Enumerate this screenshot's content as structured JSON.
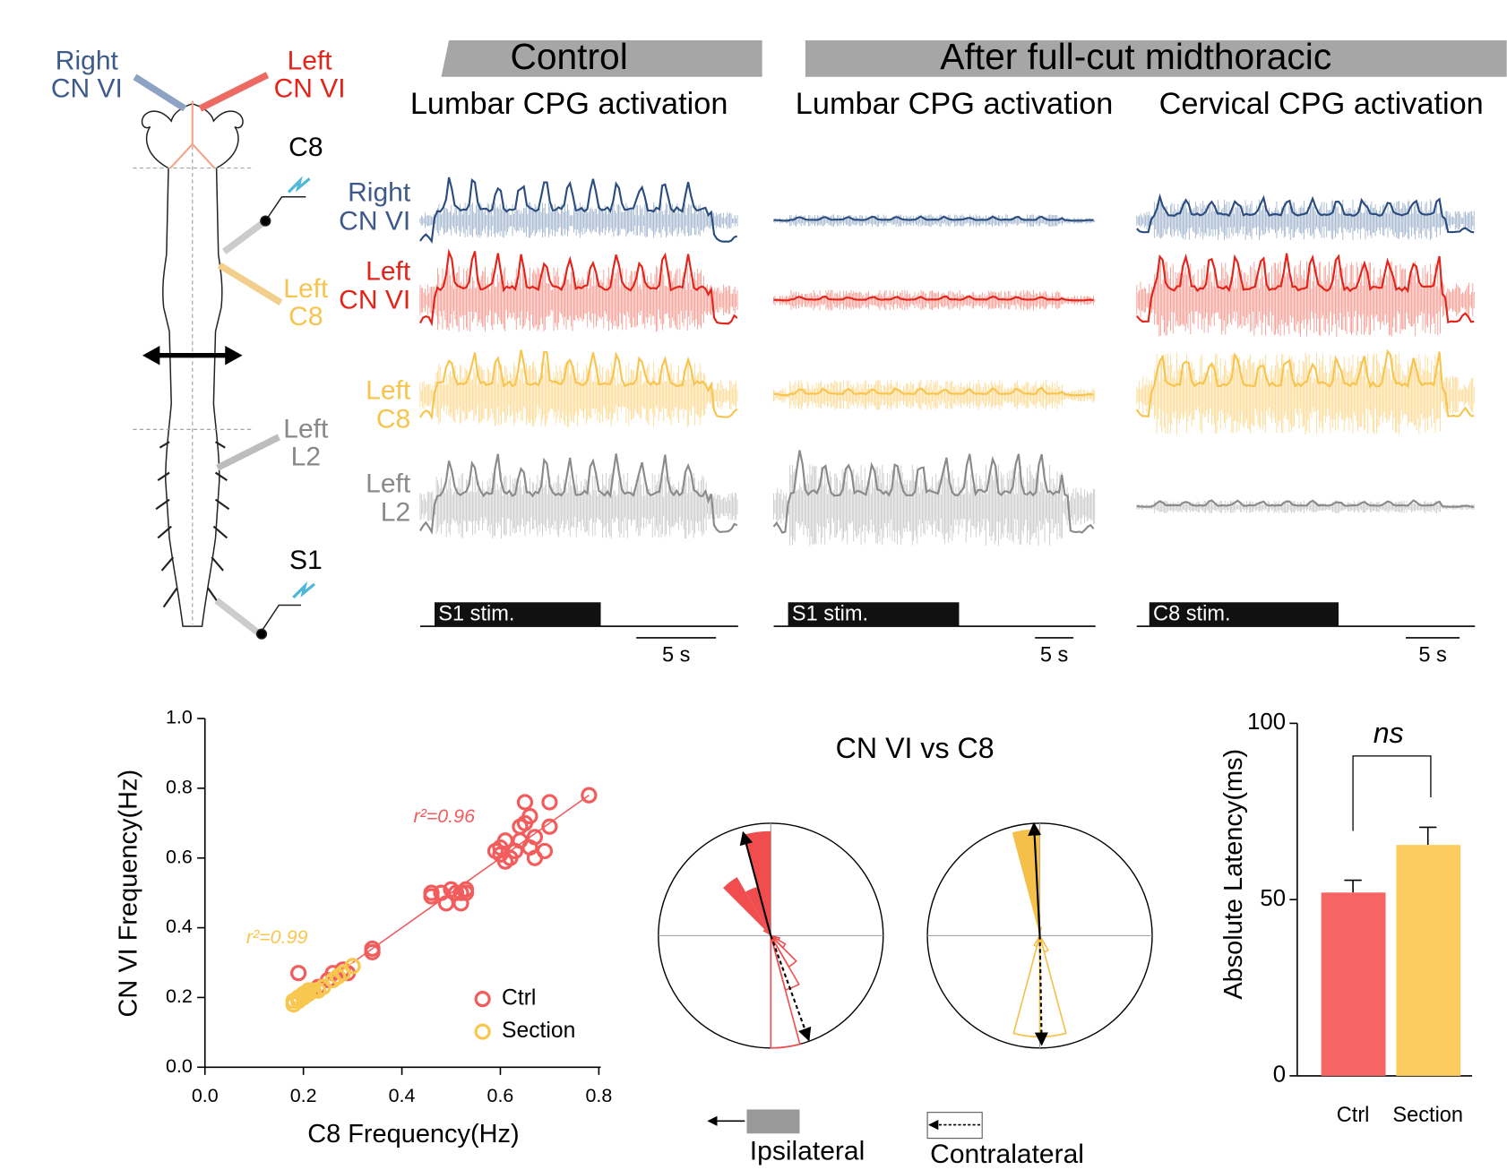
{
  "headers": {
    "control": "Control",
    "after": "After full-cut midthoracic"
  },
  "panels": [
    {
      "title": "Lumbar CPG activation",
      "stim": "S1 stim.",
      "scale": "5 s"
    },
    {
      "title": "Lumbar CPG activation",
      "stim": "S1 stim.",
      "scale": "5 s"
    },
    {
      "title": "Cervical CPG activation",
      "stim": "C8 stim.",
      "scale": "5 s"
    }
  ],
  "trace_labels": [
    [
      "Right",
      "CN VI"
    ],
    [
      "Left",
      "CN VI"
    ],
    [
      "Left",
      "C8"
    ],
    [
      "Left",
      "L2"
    ]
  ],
  "diagram": {
    "labels": [
      [
        "Right",
        "CN VI"
      ],
      [
        "Left",
        "CN VI"
      ],
      [
        "C8"
      ],
      [
        "Left",
        "C8"
      ],
      [
        "Left",
        "L2"
      ],
      [
        "S1"
      ]
    ]
  },
  "chart_data": [
    {
      "type": "scatter",
      "xlabel": "C8 Frequency(Hz)",
      "ylabel": "CN VI Frequency(Hz)",
      "xlim": [
        0,
        0.8
      ],
      "ylim": [
        0,
        1
      ],
      "xticks": [
        {
          "value": 0,
          "label": "0.0"
        },
        0.2,
        0.4,
        0.6,
        0.8
      ],
      "yticks": [
        {
          "value": 0,
          "label": "0.0"
        },
        0.2,
        0.4,
        0.6,
        0.8,
        {
          "value": 1,
          "label": "1.0"
        }
      ],
      "legend": "lower right",
      "series": [
        {
          "name": "Ctrl",
          "color": "#f25c5c",
          "annotation": "r²=0.96",
          "fit_x": [
            0.2,
            0.78
          ],
          "fit_y": [
            0.2,
            0.78
          ],
          "x": [
            0.19,
            0.22,
            0.23,
            0.25,
            0.26,
            0.28,
            0.29,
            0.34,
            0.34,
            0.46,
            0.46,
            0.48,
            0.49,
            0.5,
            0.51,
            0.52,
            0.52,
            0.53,
            0.53,
            0.59,
            0.6,
            0.6,
            0.61,
            0.61,
            0.62,
            0.63,
            0.64,
            0.64,
            0.65,
            0.65,
            0.66,
            0.66,
            0.67,
            0.67,
            0.69,
            0.7,
            0.7,
            0.78
          ],
          "y": [
            0.27,
            0.22,
            0.23,
            0.25,
            0.27,
            0.28,
            0.27,
            0.34,
            0.33,
            0.49,
            0.5,
            0.5,
            0.47,
            0.51,
            0.5,
            0.47,
            0.5,
            0.51,
            0.5,
            0.62,
            0.63,
            0.61,
            0.59,
            0.65,
            0.6,
            0.62,
            0.65,
            0.69,
            0.7,
            0.76,
            0.72,
            0.63,
            0.66,
            0.6,
            0.62,
            0.69,
            0.76,
            0.78
          ]
        },
        {
          "name": "Section",
          "color": "#f7c74f",
          "annotation": "r²=0.99",
          "fit_x": [
            0.18,
            0.3
          ],
          "fit_y": [
            0.18,
            0.3
          ],
          "x": [
            0.18,
            0.18,
            0.19,
            0.19,
            0.2,
            0.2,
            0.21,
            0.21,
            0.22,
            0.23,
            0.24,
            0.26,
            0.27,
            0.28,
            0.3
          ],
          "y": [
            0.18,
            0.19,
            0.19,
            0.2,
            0.2,
            0.21,
            0.21,
            0.22,
            0.22,
            0.22,
            0.23,
            0.25,
            0.26,
            0.27,
            0.29
          ]
        }
      ]
    },
    {
      "type": "polar",
      "title": "CN VI vs C8",
      "series_names": [
        "Ipsilateral",
        "Contralateral"
      ],
      "bin_width": 15,
      "roses": [
        {
          "color": "#f04e4e",
          "ipsilateral": {
            "angles": [
              -15,
              -30,
              -45,
              -60
            ],
            "lengths": [
              0.93,
              0.45,
              0.6,
              0.08
            ]
          },
          "contralateral": {
            "angles": [
              165,
              150,
              135,
              120,
              105
            ],
            "lengths": [
              1.0,
              0.5,
              0.32,
              0.15,
              0.08
            ]
          },
          "mean_ipsilateral": {
            "angle": -15,
            "length": 0.95
          },
          "mean_contralateral": {
            "angle": 160,
            "length": 0.99
          }
        },
        {
          "color": "#f5c04a",
          "ipsilateral": {
            "angles": [
              -15,
              0
            ],
            "lengths": [
              0.95,
              0.08
            ]
          },
          "contralateral": {
            "angles": [
              165,
              180,
              150,
              195
            ],
            "lengths": [
              0.9,
              0.9,
              0.15,
              0.1
            ]
          },
          "mean_ipsilateral": {
            "angle": -3,
            "length": 1.0
          },
          "mean_contralateral": {
            "angle": 179,
            "length": 0.97
          }
        }
      ]
    },
    {
      "type": "bar",
      "ylabel": "Absolute Latency(ms)",
      "categories": [
        "Ctrl",
        "Section"
      ],
      "values": [
        52,
        65.5
      ],
      "errors": [
        3.5,
        5
      ],
      "colors": [
        "#f76464",
        "#fccc60"
      ],
      "ylim": [
        0,
        100
      ],
      "yticks": [
        0,
        50,
        100
      ],
      "annotation": "ns"
    }
  ]
}
